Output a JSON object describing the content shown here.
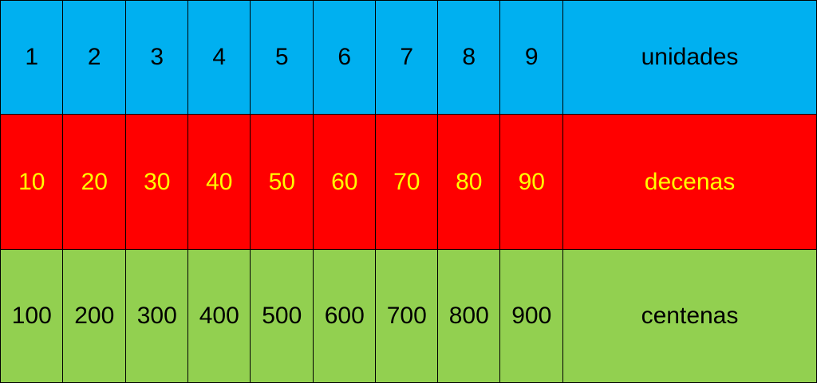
{
  "table": {
    "rows": [
      [
        1,
        2,
        3,
        4,
        5,
        6,
        7,
        8,
        9,
        "unidades"
      ],
      [
        10,
        20,
        30,
        40,
        50,
        60,
        70,
        80,
        90,
        "decenas"
      ],
      [
        100,
        200,
        300,
        400,
        500,
        600,
        700,
        800,
        900,
        "centenas"
      ]
    ]
  }
}
